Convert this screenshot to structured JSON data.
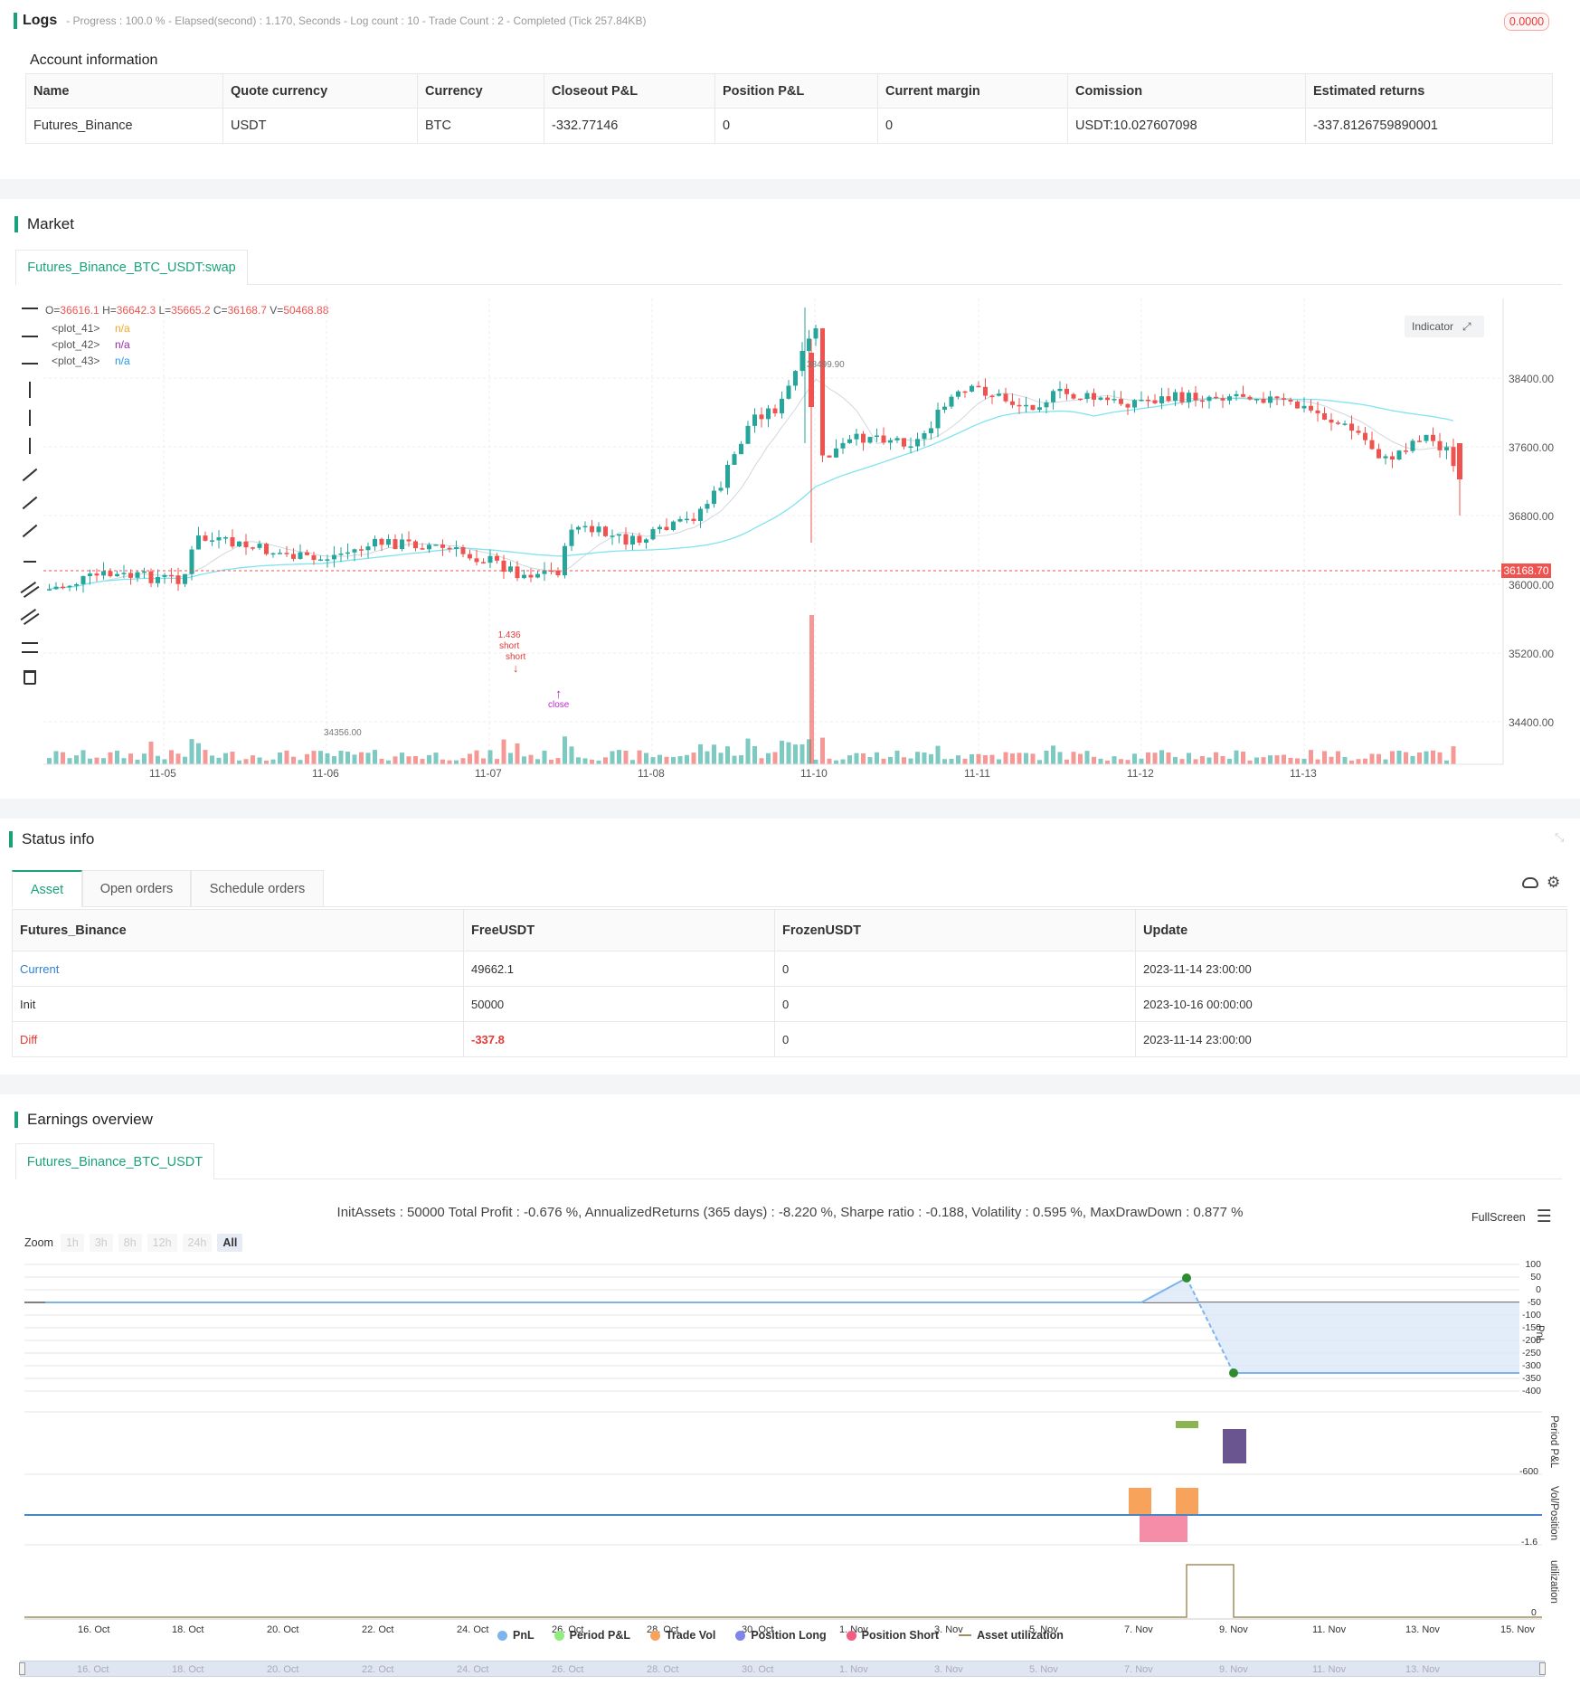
{
  "logs": {
    "title": "Logs",
    "summary": "- Progress : 100.0 % - Elapsed(second) : 1.170, Seconds - Log count : 10 - Trade Count : 2 - Completed (Tick 257.84KB)",
    "badge": "0.0000"
  },
  "account": {
    "title": "Account information",
    "headers": [
      "Name",
      "Quote currency",
      "Currency",
      "Closeout P&L",
      "Position P&L",
      "Current margin",
      "Comission",
      "Estimated returns"
    ],
    "row": [
      "Futures_Binance",
      "USDT",
      "BTC",
      "-332.77146",
      "0",
      "0",
      "USDT:10.027607098",
      "-337.8126759890001"
    ]
  },
  "market": {
    "title": "Market",
    "tab": "Futures_Binance_BTC_USDT:swap",
    "ohlc": {
      "o_label": "O=",
      "o": "36616.1",
      "h_label": " H=",
      "h": "36642.3",
      "l_label": " L=",
      "l": "35665.2",
      "c_label": " C=",
      "c": "36168.7",
      "v_label": " V=",
      "v": "50468.88"
    },
    "plots": [
      {
        "name": "<plot_41>",
        "value": "n/a",
        "color": "#f5a623"
      },
      {
        "name": "<plot_42>",
        "value": "n/a",
        "color": "#9b27b0"
      },
      {
        "name": "<plot_43>",
        "value": "n/a",
        "color": "#2196f3"
      }
    ],
    "indicator_button": "Indicator",
    "price_axis": [
      "38400.00",
      "37600.00",
      "36800.00",
      "36000.00",
      "35200.00",
      "34400.00"
    ],
    "price_marker": "36168.70",
    "high_label": "38499.90",
    "low_label": "34356.00",
    "time_axis": [
      "11-05",
      "11-06",
      "11-07",
      "11-08",
      "11-10",
      "11-11",
      "11-12",
      "11-13"
    ],
    "annotations": {
      "short_label": "1.436",
      "short_1": "short",
      "short_2": "short",
      "close": "close"
    },
    "colors": {
      "up": "#26a69a",
      "down": "#ef5350",
      "ma_fast": "#9fd9e0",
      "ma_slow": "#7fe3f0",
      "marker": "#ef5350"
    }
  },
  "status": {
    "title": "Status info",
    "tabs": [
      "Asset",
      "Open orders",
      "Schedule orders"
    ],
    "headers": [
      "Futures_Binance",
      "FreeUSDT",
      "FrozenUSDT",
      "Update"
    ],
    "rows": [
      {
        "label": "Current",
        "free": "49662.1",
        "frozen": "0",
        "update": "2023-11-14 23:00:00"
      },
      {
        "label": "Init",
        "free": "50000",
        "frozen": "0",
        "update": "2023-10-16 00:00:00"
      },
      {
        "label": "Diff",
        "free": "-337.8",
        "frozen": "0",
        "update": "2023-11-14 23:00:00"
      }
    ]
  },
  "earnings": {
    "title": "Earnings overview",
    "tab": "Futures_Binance_BTC_USDT",
    "summary": "InitAssets : 50000 Total Profit : -0.676 %, AnnualizedReturns (365 days) : -8.220 %, Sharpe ratio : -0.188, Volatility : 0.595 %, MaxDrawDown : 0.877 %",
    "fullscreen": "FullScreen",
    "zoom_label": "Zoom",
    "zoom_options": [
      "1h",
      "3h",
      "8h",
      "12h",
      "24h",
      "All"
    ],
    "pnl_axis": [
      "100",
      "50",
      "0",
      "-50",
      "-100",
      "-150",
      "-200",
      "-250",
      "-300",
      "-350",
      "-400"
    ],
    "pnl_title": "PnL",
    "period_title": "Period P&L",
    "period_axis": "-600",
    "vol_title": "Vol/Position",
    "vol_axis": "-1.6",
    "util_title": "utilization",
    "util_axis": "0",
    "x_axis": [
      "16. Oct",
      "18. Oct",
      "20. Oct",
      "22. Oct",
      "24. Oct",
      "26. Oct",
      "28. Oct",
      "30. Oct",
      "1. Nov",
      "3. Nov",
      "5. Nov",
      "7. Nov",
      "9. Nov",
      "11. Nov",
      "13. Nov",
      "15. Nov"
    ],
    "legend": [
      {
        "label": "PnL",
        "color": "#7cb5ec"
      },
      {
        "label": "Period P&L",
        "color": "#90ed7d"
      },
      {
        "label": "Trade Vol",
        "color": "#f7a35c"
      },
      {
        "label": "Position Long",
        "color": "#8085e9"
      },
      {
        "label": "Position Short",
        "color": "#f15c80"
      },
      {
        "label": "Asset utilization",
        "color": "#a08f5d"
      }
    ],
    "navigator_axis": [
      "16. Oct",
      "18. Oct",
      "20. Oct",
      "22. Oct",
      "24. Oct",
      "26. Oct",
      "28. Oct",
      "30. Oct",
      "1. Nov",
      "3. Nov",
      "5. Nov",
      "7. Nov",
      "9. Nov",
      "11. Nov",
      "13. Nov"
    ]
  }
}
